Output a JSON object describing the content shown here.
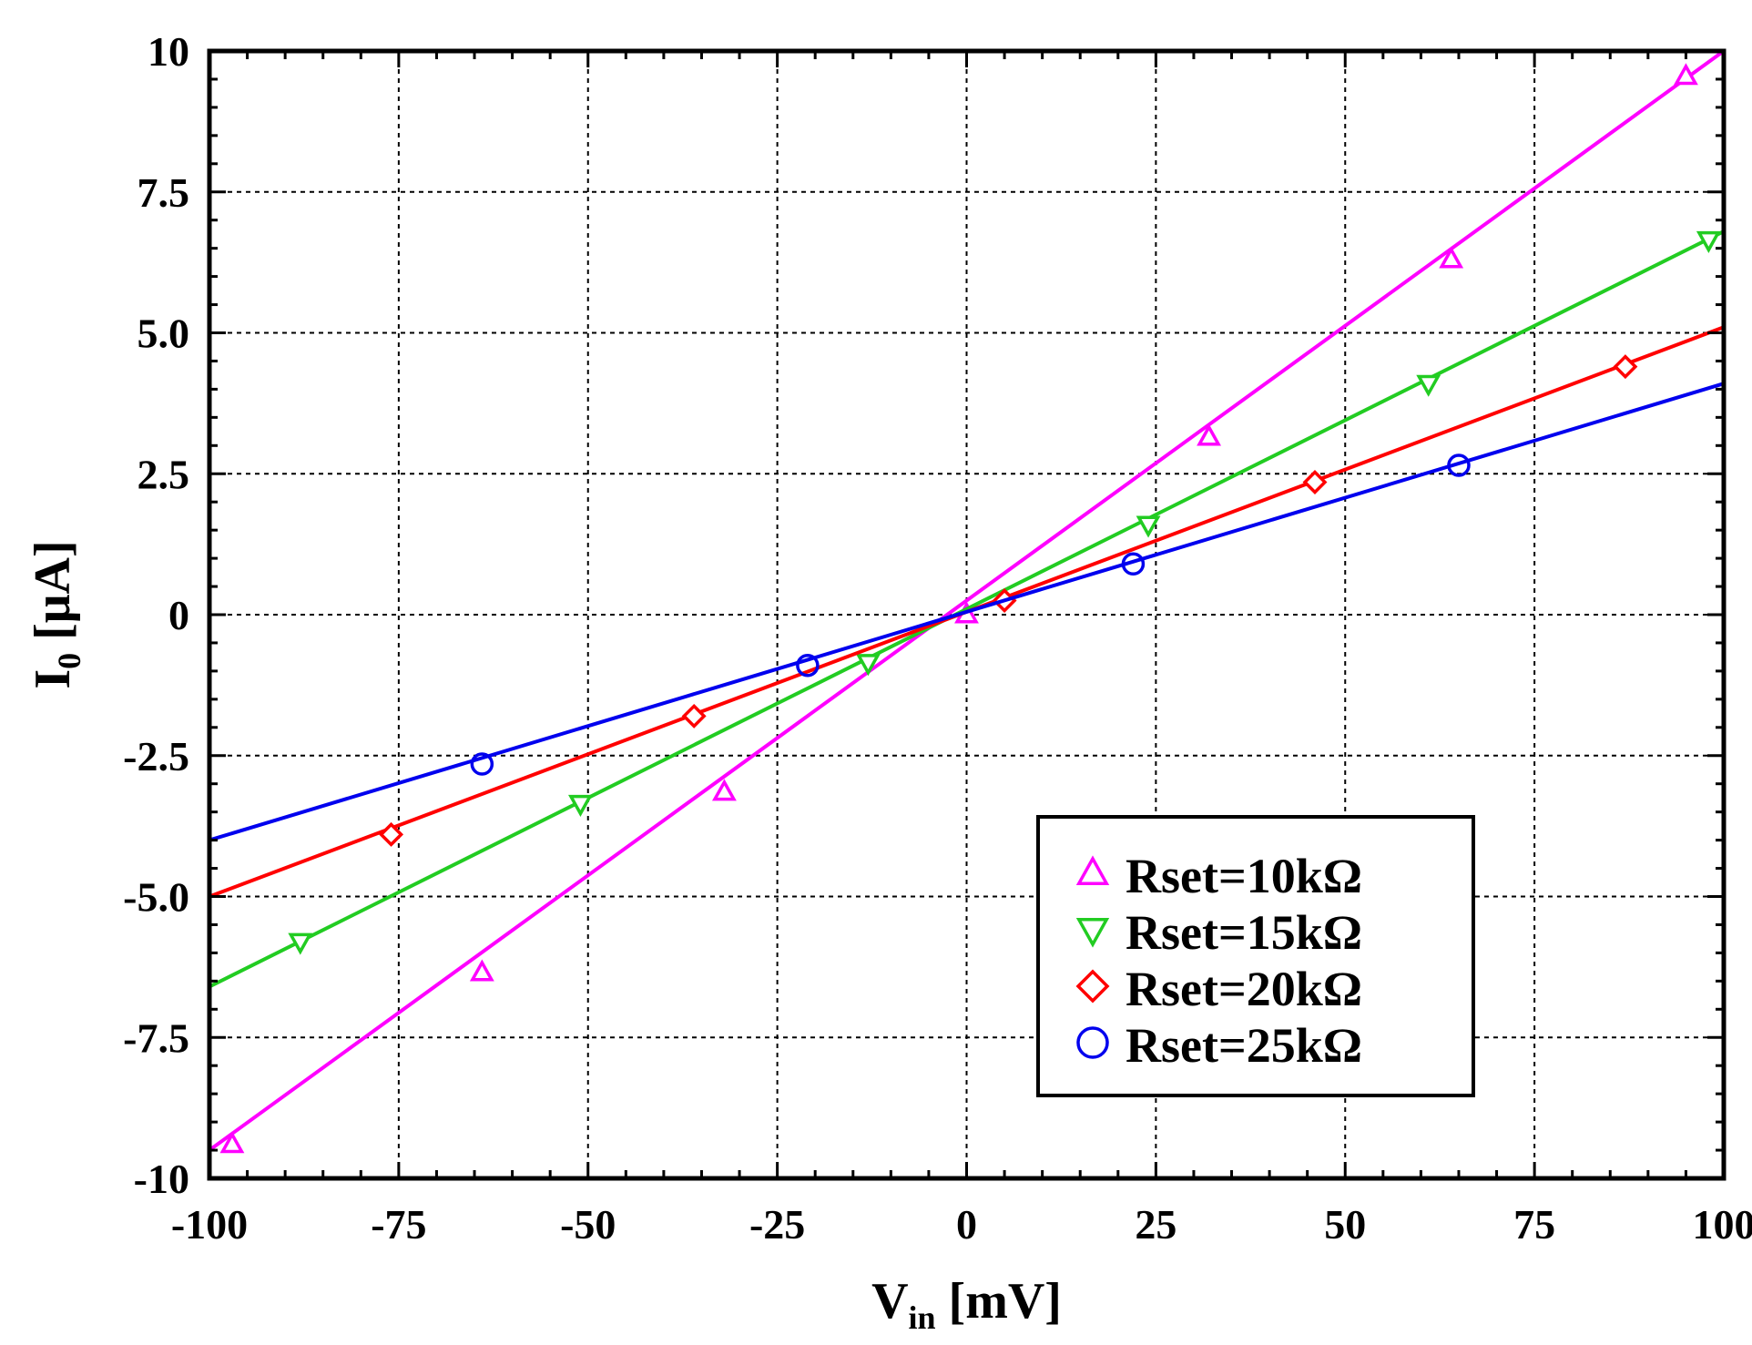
{
  "chart_data": {
    "type": "line",
    "title": "",
    "xlabel": {
      "main": "V",
      "sub": "in",
      "unit": " [mV]"
    },
    "ylabel": {
      "main": "I",
      "sub": "0",
      "unit": " [μA]"
    },
    "xlim": [
      -100,
      100
    ],
    "ylim": [
      -10,
      10
    ],
    "x_ticks": [
      -100,
      -75,
      -50,
      -25,
      0,
      25,
      50,
      75,
      100
    ],
    "x_tick_labels": [
      "-100",
      "-75",
      "-50",
      "-25",
      "0",
      "25",
      "50",
      "75",
      "100"
    ],
    "y_ticks": [
      10,
      7.5,
      5.0,
      2.5,
      0,
      -2.5,
      -5.0,
      -7.5,
      -10
    ],
    "y_tick_labels": [
      "10",
      "7.5",
      "5.0",
      "2.5",
      "0",
      "-2.5",
      "-5.0",
      "-7.5",
      "-10"
    ],
    "grid": true,
    "legend_position": "bottom-right",
    "series": [
      {
        "name": "Rset=10kΩ",
        "color": "#ff00ff",
        "marker": "triangle-up",
        "x": [
          -100,
          100
        ],
        "y": [
          -9.5,
          10.0
        ],
        "marker_points": [
          [
            -97,
            -9.4
          ],
          [
            -64,
            -6.35
          ],
          [
            -32,
            -3.15
          ],
          [
            0,
            0
          ],
          [
            32,
            3.15
          ],
          [
            64,
            6.3
          ],
          [
            95,
            9.55
          ]
        ]
      },
      {
        "name": "Rset=15kΩ",
        "color": "#22cc22",
        "marker": "triangle-down",
        "x": [
          -100,
          100
        ],
        "y": [
          -6.6,
          6.8
        ],
        "marker_points": [
          [
            -88,
            -5.8
          ],
          [
            -51,
            -3.35
          ],
          [
            -13,
            -0.85
          ],
          [
            24,
            1.6
          ],
          [
            61,
            4.1
          ],
          [
            98,
            6.65
          ]
        ]
      },
      {
        "name": "Rset=20kΩ",
        "color": "#ff0000",
        "marker": "diamond",
        "x": [
          -100,
          100
        ],
        "y": [
          -5.0,
          5.1
        ],
        "marker_points": [
          [
            -76,
            -3.9
          ],
          [
            -36,
            -1.8
          ],
          [
            5,
            0.25
          ],
          [
            46,
            2.35
          ],
          [
            87,
            4.4
          ]
        ]
      },
      {
        "name": "Rset=25kΩ",
        "color": "#0000ee",
        "marker": "circle",
        "x": [
          -100,
          100
        ],
        "y": [
          -4.0,
          4.1
        ],
        "marker_points": [
          [
            -64,
            -2.65
          ],
          [
            -21,
            -0.9
          ],
          [
            22,
            0.9
          ],
          [
            65,
            2.65
          ]
        ]
      }
    ]
  }
}
